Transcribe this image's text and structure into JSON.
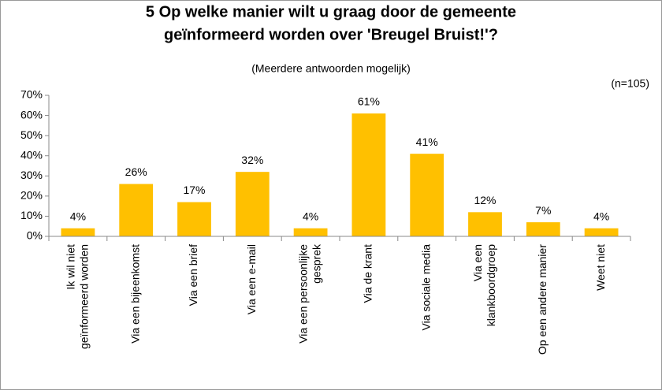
{
  "chart_data": {
    "type": "bar",
    "title": "5 Op welke manier wilt u graag door de gemeente\ngeïnformeerd worden over 'Breugel Bruist!'?",
    "subtitle": "(Meerdere antwoorden mogelijk)",
    "annotation": "(n=105)",
    "categories": [
      "Ik wil niet\ngeïnformeerd worden",
      "Via een bijeenkomst",
      "Via een brief",
      "Via een e-mail",
      "Via een persoonlijke\ngesprek",
      "Via de krant",
      "Via sociale media",
      "Via een\nklankboordgroep",
      "Op een andere manier",
      "Weet niet"
    ],
    "values": [
      4,
      26,
      17,
      32,
      4,
      61,
      41,
      12,
      7,
      4
    ],
    "value_labels": [
      "4%",
      "26%",
      "17%",
      "32%",
      "4%",
      "61%",
      "41%",
      "12%",
      "7%",
      "4%"
    ],
    "color": "#ffc000",
    "ylim": [
      0,
      70
    ],
    "yticks": [
      {
        "value": 0,
        "label": "0%"
      },
      {
        "value": 10,
        "label": "10%"
      },
      {
        "value": 20,
        "label": "20%"
      },
      {
        "value": 30,
        "label": "30%"
      },
      {
        "value": 40,
        "label": "40%"
      },
      {
        "value": 50,
        "label": "50%"
      },
      {
        "value": 60,
        "label": "60%"
      },
      {
        "value": 70,
        "label": "70%"
      }
    ],
    "grid": false
  }
}
